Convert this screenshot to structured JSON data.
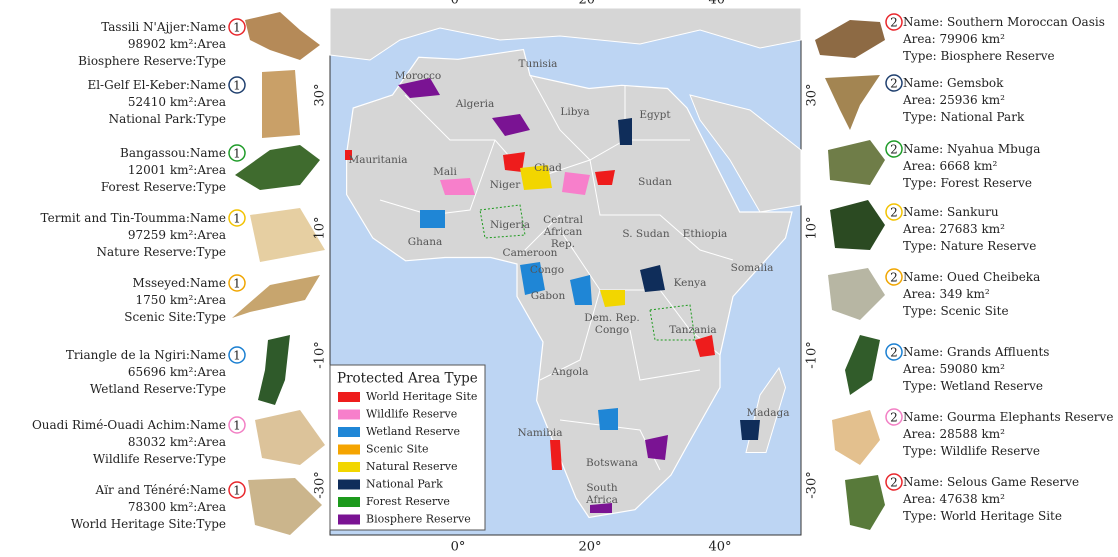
{
  "left_labels": {
    "name": ":Name",
    "area": ":Area",
    "type": ":Type"
  },
  "right_labels": {
    "name": "Name: ",
    "area": "Area: ",
    "type": "Type: "
  },
  "left": [
    {
      "name": "Tassili N'Ajjer",
      "area": "98902 km²",
      "type": "Biosphere Reserve",
      "badge": "1",
      "badge_color": "#e8262b"
    },
    {
      "name": "El-Gelf El-Keber",
      "area": "52410 km²",
      "type": "National Park",
      "badge": "1",
      "badge_color": "#1f3f6e"
    },
    {
      "name": "Bangassou",
      "area": "12001 km²",
      "type": "Forest Reserve",
      "badge": "1",
      "badge_color": "#1e9b28"
    },
    {
      "name": "Termit and Tin-Toumma",
      "area": "97259 km²",
      "type": "Nature Reserve",
      "badge": "1",
      "badge_color": "#f2c200"
    },
    {
      "name": "Msseyed",
      "area": "1750 km²",
      "type": "Scenic Site",
      "badge": "1",
      "badge_color": "#f0a500"
    },
    {
      "name": "Triangle de la Ngiri",
      "area": "65696 km²",
      "type": "Wetland Reserve",
      "badge": "1",
      "badge_color": "#1a7fd1"
    },
    {
      "name": "Ouadi Rimé-Ouadi Achim",
      "area": "83032 km²",
      "type": "Wildlife Reserve",
      "badge": "1",
      "badge_color": "#f27fc4"
    },
    {
      "name": "Aïr and Ténéré",
      "area": "78300 km²",
      "type": "World Heritage Site",
      "badge": "1",
      "badge_color": "#e8262b"
    }
  ],
  "right": [
    {
      "name": "Southern Moroccan Oasis",
      "area": "79906 km²",
      "type": "Biosphere Reserve",
      "badge": "2",
      "badge_color": "#e8262b"
    },
    {
      "name": "Gemsbok",
      "area": "25936 km²",
      "type": "National Park",
      "badge": "2",
      "badge_color": "#1f3f6e"
    },
    {
      "name": "Nyahua Mbuga",
      "area": "6668 km²",
      "type": "Forest Reserve",
      "badge": "2",
      "badge_color": "#1e9b28"
    },
    {
      "name": "Sankuru",
      "area": "27683 km²",
      "type": "Nature Reserve",
      "badge": "2",
      "badge_color": "#f2c200"
    },
    {
      "name": "Oued Cheibeka",
      "area": "349 km²",
      "type": "Scenic Site",
      "badge": "2",
      "badge_color": "#f0a500"
    },
    {
      "name": "Grands Affluents",
      "area": "59080 km²",
      "type": "Wetland Reserve",
      "badge": "2",
      "badge_color": "#1a7fd1"
    },
    {
      "name": "Gourma Elephants Reserve",
      "area": "28588 km²",
      "type": "Wildlife Reserve",
      "badge": "2",
      "badge_color": "#f27fc4"
    },
    {
      "name": "Selous Game Reserve",
      "area": "47638 km²",
      "type": "World Heritage Site",
      "badge": "2",
      "badge_color": "#e8262b"
    }
  ],
  "map": {
    "xticks": [
      "0°",
      "20°",
      "40°"
    ],
    "yticks": [
      "30°",
      "10°",
      "-10°",
      "-30°"
    ],
    "countries": [
      [
        "Morocco"
      ],
      [
        "Tunisia"
      ],
      [
        "Algeria"
      ],
      [
        "Libya"
      ],
      [
        "Egypt"
      ],
      [
        "Mauritania"
      ],
      [
        "Mali"
      ],
      [
        "Niger"
      ],
      [
        "Chad"
      ],
      [
        "Sudan"
      ],
      [
        "Nigeria"
      ],
      [
        "Ghana"
      ],
      [
        "Central",
        "African",
        "Rep."
      ],
      [
        "S. Sudan"
      ],
      [
        "Ethiopia"
      ],
      [
        "Cameroon"
      ],
      [
        "Congo"
      ],
      [
        "Gabon"
      ],
      [
        "Somalia"
      ],
      [
        "Kenya"
      ],
      [
        "Dem. Rep.",
        "Congo"
      ],
      [
        "Tanzania"
      ],
      [
        "Angola"
      ],
      [
        "Namibia"
      ],
      [
        "Botswana"
      ],
      [
        "Madaga"
      ],
      [
        "South",
        "Africa"
      ]
    ],
    "legend": {
      "title": "Protected Area Type",
      "items": [
        {
          "name": "World Heritage Site",
          "color": "#ee1c1c"
        },
        {
          "name": "Wildlife Reserve",
          "color": "#f77fcb"
        },
        {
          "name": "Wetland Reserve",
          "color": "#1f86d6"
        },
        {
          "name": "Scenic Site",
          "color": "#f5a400"
        },
        {
          "name": "Natural Reserve",
          "color": "#f2d600"
        },
        {
          "name": "National Park",
          "color": "#0f2d5a"
        },
        {
          "name": "Forest Reserve",
          "color": "#1c9a1c"
        },
        {
          "name": "Biosphere Reserve",
          "color": "#7a1393"
        }
      ]
    }
  }
}
